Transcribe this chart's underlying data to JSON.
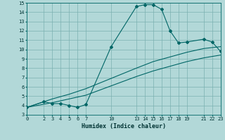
{
  "title": "",
  "xlabel": "Humidex (Indice chaleur)",
  "ylabel": "",
  "bg_color": "#b2d8d8",
  "grid_color": "#7ab0b0",
  "line_color": "#006666",
  "ylim": [
    3,
    15
  ],
  "xlim": [
    0,
    23
  ],
  "yticks": [
    3,
    4,
    5,
    6,
    7,
    8,
    9,
    10,
    11,
    12,
    13,
    14,
    15
  ],
  "xticks": [
    0,
    2,
    3,
    4,
    5,
    6,
    7,
    10,
    13,
    14,
    15,
    16,
    17,
    18,
    19,
    21,
    22,
    23
  ],
  "line1_x": [
    0,
    2,
    3,
    4,
    5,
    6,
    7,
    10,
    13,
    14,
    15,
    16,
    17,
    18,
    19,
    21,
    22,
    23
  ],
  "line1_y": [
    3.8,
    4.4,
    4.2,
    4.2,
    4.0,
    3.8,
    4.1,
    10.3,
    14.6,
    14.8,
    14.8,
    14.3,
    12.0,
    10.7,
    10.8,
    11.1,
    10.8,
    9.8
  ],
  "line2_x": [
    0,
    3,
    5,
    7,
    10,
    13,
    15,
    17,
    19,
    21,
    23
  ],
  "line2_y": [
    3.8,
    4.7,
    5.2,
    5.8,
    6.9,
    8.0,
    8.7,
    9.2,
    9.7,
    10.1,
    10.3
  ],
  "line3_x": [
    0,
    3,
    5,
    7,
    10,
    13,
    15,
    17,
    19,
    21,
    23
  ],
  "line3_y": [
    3.8,
    4.3,
    4.7,
    5.1,
    6.1,
    7.1,
    7.7,
    8.2,
    8.7,
    9.1,
    9.4
  ],
  "xlabel_fontsize": 6.0,
  "tick_fontsize": 5.0
}
